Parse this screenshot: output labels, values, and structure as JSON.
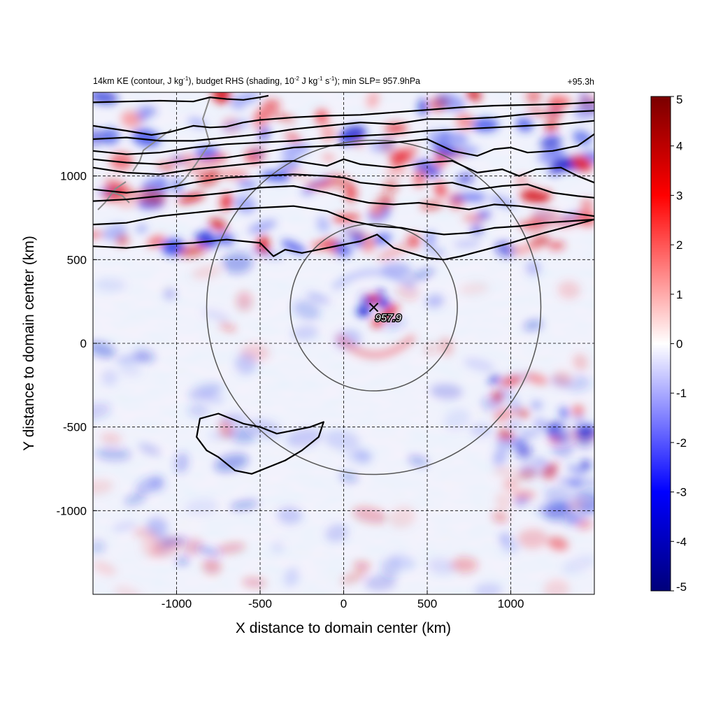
{
  "title_parts": {
    "p1": "14km KE (contour, J kg",
    "s1": "-1",
    "p2": "), budget RHS (shading, 10",
    "s2": "-2",
    "p3": " J kg",
    "s3": "-1",
    "p4": " s",
    "s4": "-1",
    "p5": "); min SLP= 957.9hPa"
  },
  "chart_data": {
    "type": "heatmap",
    "valid_time": "+95.3h",
    "xlabel": "X distance to domain center (km)",
    "ylabel": "Y distance to domain center (km)",
    "xlim": [
      -1500,
      1500
    ],
    "ylim": [
      -1500,
      1500
    ],
    "xticks": [
      -1000,
      -500,
      0,
      500,
      1000
    ],
    "yticks": [
      -1000,
      -500,
      0,
      500,
      1000
    ],
    "grid": "dashed lines at 500 km intervals",
    "colorbar": {
      "min": -5,
      "max": 5,
      "ticks": [
        5,
        4,
        3,
        2,
        1,
        0,
        -1,
        -2,
        -3,
        -4,
        -5
      ],
      "colors": [
        "#00007a",
        "#0000ff",
        "#ffffff",
        "#ff0000",
        "#7a0000"
      ]
    },
    "storm_center": {
      "x": 180,
      "y": 215,
      "label": "957.9"
    },
    "range_rings": [
      {
        "center_x": 180,
        "center_y": 215,
        "radius_km": 500
      },
      {
        "center_x": 180,
        "center_y": 215,
        "radius_km": 1000
      }
    ],
    "ke_contours": [
      [
        [
          -1500,
          1440
        ],
        [
          -1300,
          1445
        ],
        [
          -1100,
          1450
        ],
        [
          -900,
          1445
        ],
        [
          -800,
          1470
        ],
        [
          -700,
          1460
        ],
        [
          -600,
          1455
        ],
        [
          -500,
          1470
        ],
        [
          -450,
          1480
        ]
      ],
      [
        [
          -1500,
          1300
        ],
        [
          -1300,
          1270
        ],
        [
          -1150,
          1245
        ],
        [
          -1050,
          1260
        ],
        [
          -900,
          1300
        ],
        [
          -800,
          1290
        ],
        [
          -700,
          1295
        ],
        [
          -600,
          1320
        ],
        [
          -500,
          1335
        ],
        [
          -300,
          1350
        ],
        [
          -100,
          1360
        ],
        [
          100,
          1365
        ],
        [
          300,
          1380
        ],
        [
          500,
          1395
        ],
        [
          700,
          1410
        ],
        [
          900,
          1420
        ],
        [
          1100,
          1425
        ],
        [
          1300,
          1430
        ],
        [
          1500,
          1440
        ]
      ],
      [
        [
          -1500,
          1220
        ],
        [
          -1300,
          1230
        ],
        [
          -1100,
          1210
        ],
        [
          -900,
          1210
        ],
        [
          -700,
          1230
        ],
        [
          -500,
          1250
        ],
        [
          -300,
          1280
        ],
        [
          -100,
          1300
        ],
        [
          100,
          1320
        ],
        [
          300,
          1310
        ],
        [
          500,
          1340
        ],
        [
          700,
          1340
        ],
        [
          900,
          1350
        ],
        [
          1100,
          1370
        ],
        [
          1300,
          1380
        ],
        [
          1500,
          1390
        ]
      ],
      [
        [
          -1500,
          1150
        ],
        [
          -1300,
          1130
        ],
        [
          -1100,
          1140
        ],
        [
          -900,
          1170
        ],
        [
          -700,
          1190
        ],
        [
          -500,
          1200
        ],
        [
          -300,
          1210
        ],
        [
          -100,
          1230
        ],
        [
          100,
          1240
        ],
        [
          300,
          1250
        ],
        [
          500,
          1270
        ],
        [
          700,
          1280
        ],
        [
          900,
          1290
        ],
        [
          1100,
          1300
        ],
        [
          1300,
          1310
        ],
        [
          1500,
          1330
        ]
      ],
      [
        [
          -1500,
          1100
        ],
        [
          -1300,
          1080
        ],
        [
          -1100,
          1070
        ],
        [
          -900,
          1100
        ],
        [
          -700,
          1110
        ],
        [
          -500,
          1140
        ],
        [
          -300,
          1170
        ],
        [
          -100,
          1180
        ],
        [
          100,
          1190
        ],
        [
          300,
          1200
        ],
        [
          500,
          1220
        ],
        [
          650,
          1150
        ],
        [
          800,
          1120
        ],
        [
          900,
          1160
        ],
        [
          1000,
          1170
        ],
        [
          1100,
          1140
        ],
        [
          1250,
          1150
        ],
        [
          1400,
          1180
        ],
        [
          1500,
          1250
        ]
      ],
      [
        [
          -1500,
          1050
        ],
        [
          -1300,
          1020
        ],
        [
          -1100,
          1010
        ],
        [
          -900,
          1040
        ],
        [
          -700,
          1060
        ],
        [
          -500,
          1080
        ],
        [
          -300,
          1090
        ],
        [
          -100,
          1060
        ],
        [
          0,
          1100
        ],
        [
          100,
          1070
        ],
        [
          300,
          1050
        ],
        [
          500,
          1080
        ],
        [
          650,
          1090
        ],
        [
          800,
          1020
        ],
        [
          950,
          1040
        ],
        [
          1050,
          1000
        ],
        [
          1150,
          1040
        ],
        [
          1300,
          1050
        ],
        [
          1400,
          1000
        ],
        [
          1500,
          960
        ]
      ],
      [
        [
          -1500,
          920
        ],
        [
          -1300,
          900
        ],
        [
          -1100,
          920
        ],
        [
          -900,
          960
        ],
        [
          -700,
          990
        ],
        [
          -500,
          1000
        ],
        [
          -300,
          1010
        ],
        [
          -100,
          1000
        ],
        [
          0,
          990
        ],
        [
          100,
          960
        ],
        [
          300,
          940
        ],
        [
          500,
          950
        ],
        [
          650,
          960
        ],
        [
          800,
          920
        ],
        [
          950,
          940
        ],
        [
          1100,
          950
        ],
        [
          1250,
          900
        ],
        [
          1400,
          880
        ],
        [
          1500,
          870
        ]
      ],
      [
        [
          -1500,
          850
        ],
        [
          -1300,
          860
        ],
        [
          -1100,
          880
        ],
        [
          -900,
          880
        ],
        [
          -700,
          900
        ],
        [
          -500,
          930
        ],
        [
          -300,
          940
        ],
        [
          -100,
          900
        ],
        [
          50,
          860
        ],
        [
          150,
          840
        ],
        [
          300,
          830
        ],
        [
          450,
          840
        ],
        [
          600,
          820
        ],
        [
          750,
          800
        ],
        [
          900,
          830
        ],
        [
          1050,
          820
        ],
        [
          1200,
          800
        ],
        [
          1350,
          780
        ],
        [
          1500,
          760
        ]
      ],
      [
        [
          -1500,
          710
        ],
        [
          -1300,
          720
        ],
        [
          -1100,
          760
        ],
        [
          -900,
          780
        ],
        [
          -700,
          800
        ],
        [
          -500,
          810
        ],
        [
          -300,
          820
        ],
        [
          -100,
          790
        ],
        [
          50,
          730
        ],
        [
          200,
          700
        ],
        [
          350,
          690
        ],
        [
          450,
          670
        ],
        [
          600,
          650
        ],
        [
          750,
          660
        ],
        [
          900,
          690
        ],
        [
          1050,
          700
        ],
        [
          1200,
          720
        ],
        [
          1350,
          730
        ],
        [
          1500,
          740
        ]
      ],
      [
        [
          -1500,
          580
        ],
        [
          -1300,
          570
        ],
        [
          -1100,
          590
        ],
        [
          -900,
          600
        ],
        [
          -700,
          620
        ],
        [
          -500,
          600
        ],
        [
          -420,
          520
        ],
        [
          -350,
          560
        ],
        [
          -250,
          540
        ],
        [
          -100,
          570
        ],
        [
          100,
          610
        ],
        [
          200,
          650
        ],
        [
          300,
          570
        ],
        [
          500,
          510
        ],
        [
          600,
          500
        ],
        [
          700,
          520
        ],
        [
          850,
          560
        ],
        [
          1000,
          600
        ],
        [
          1100,
          630
        ],
        [
          1200,
          660
        ],
        [
          1500,
          740
        ]
      ]
    ],
    "south_contour": [
      [
        -860,
        -450
      ],
      [
        -750,
        -420
      ],
      [
        -600,
        -480
      ],
      [
        -500,
        -500
      ],
      [
        -400,
        -540
      ],
      [
        -300,
        -520
      ],
      [
        -200,
        -500
      ],
      [
        -120,
        -470
      ],
      [
        -150,
        -560
      ],
      [
        -250,
        -640
      ],
      [
        -350,
        -700
      ],
      [
        -450,
        -740
      ],
      [
        -550,
        -780
      ],
      [
        -650,
        -760
      ],
      [
        -750,
        -680
      ],
      [
        -820,
        -640
      ],
      [
        -880,
        -560
      ],
      [
        -860,
        -450
      ]
    ]
  }
}
